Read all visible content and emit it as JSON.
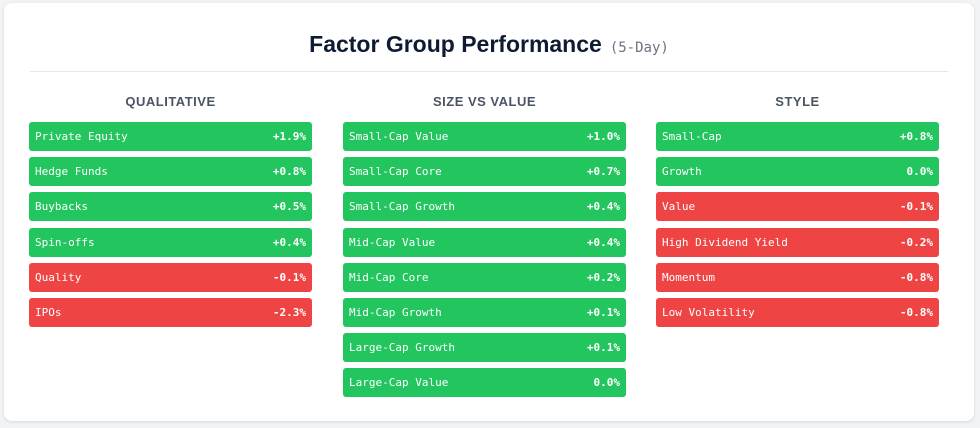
{
  "title": "Factor Group Performance",
  "subtitle": "(5-Day)",
  "colors": {
    "positive": "#22c55e",
    "negative": "#ef4444"
  },
  "columns": [
    {
      "heading": "QUALITATIVE",
      "items": [
        {
          "label": "Private Equity",
          "value": "+1.9%",
          "sign": "positive"
        },
        {
          "label": "Hedge Funds",
          "value": "+0.8%",
          "sign": "positive"
        },
        {
          "label": "Buybacks",
          "value": "+0.5%",
          "sign": "positive"
        },
        {
          "label": "Spin-offs",
          "value": "+0.4%",
          "sign": "positive"
        },
        {
          "label": "Quality",
          "value": "-0.1%",
          "sign": "negative"
        },
        {
          "label": "IPOs",
          "value": "-2.3%",
          "sign": "negative"
        }
      ]
    },
    {
      "heading": "SIZE VS VALUE",
      "items": [
        {
          "label": "Small-Cap Value",
          "value": "+1.0%",
          "sign": "positive"
        },
        {
          "label": "Small-Cap Core",
          "value": "+0.7%",
          "sign": "positive"
        },
        {
          "label": "Small-Cap Growth",
          "value": "+0.4%",
          "sign": "positive"
        },
        {
          "label": "Mid-Cap Value",
          "value": "+0.4%",
          "sign": "positive"
        },
        {
          "label": "Mid-Cap Core",
          "value": "+0.2%",
          "sign": "positive"
        },
        {
          "label": "Mid-Cap Growth",
          "value": "+0.1%",
          "sign": "positive"
        },
        {
          "label": "Large-Cap Growth",
          "value": "+0.1%",
          "sign": "positive"
        },
        {
          "label": "Large-Cap Value",
          "value": "0.0%",
          "sign": "positive"
        }
      ]
    },
    {
      "heading": "STYLE",
      "items": [
        {
          "label": "Small-Cap",
          "value": "+0.8%",
          "sign": "positive"
        },
        {
          "label": "Growth",
          "value": "0.0%",
          "sign": "positive"
        },
        {
          "label": "Value",
          "value": "-0.1%",
          "sign": "negative"
        },
        {
          "label": "High Dividend Yield",
          "value": "-0.2%",
          "sign": "negative"
        },
        {
          "label": "Momentum",
          "value": "-0.8%",
          "sign": "negative"
        },
        {
          "label": "Low Volatility",
          "value": "-0.8%",
          "sign": "negative"
        }
      ]
    }
  ]
}
